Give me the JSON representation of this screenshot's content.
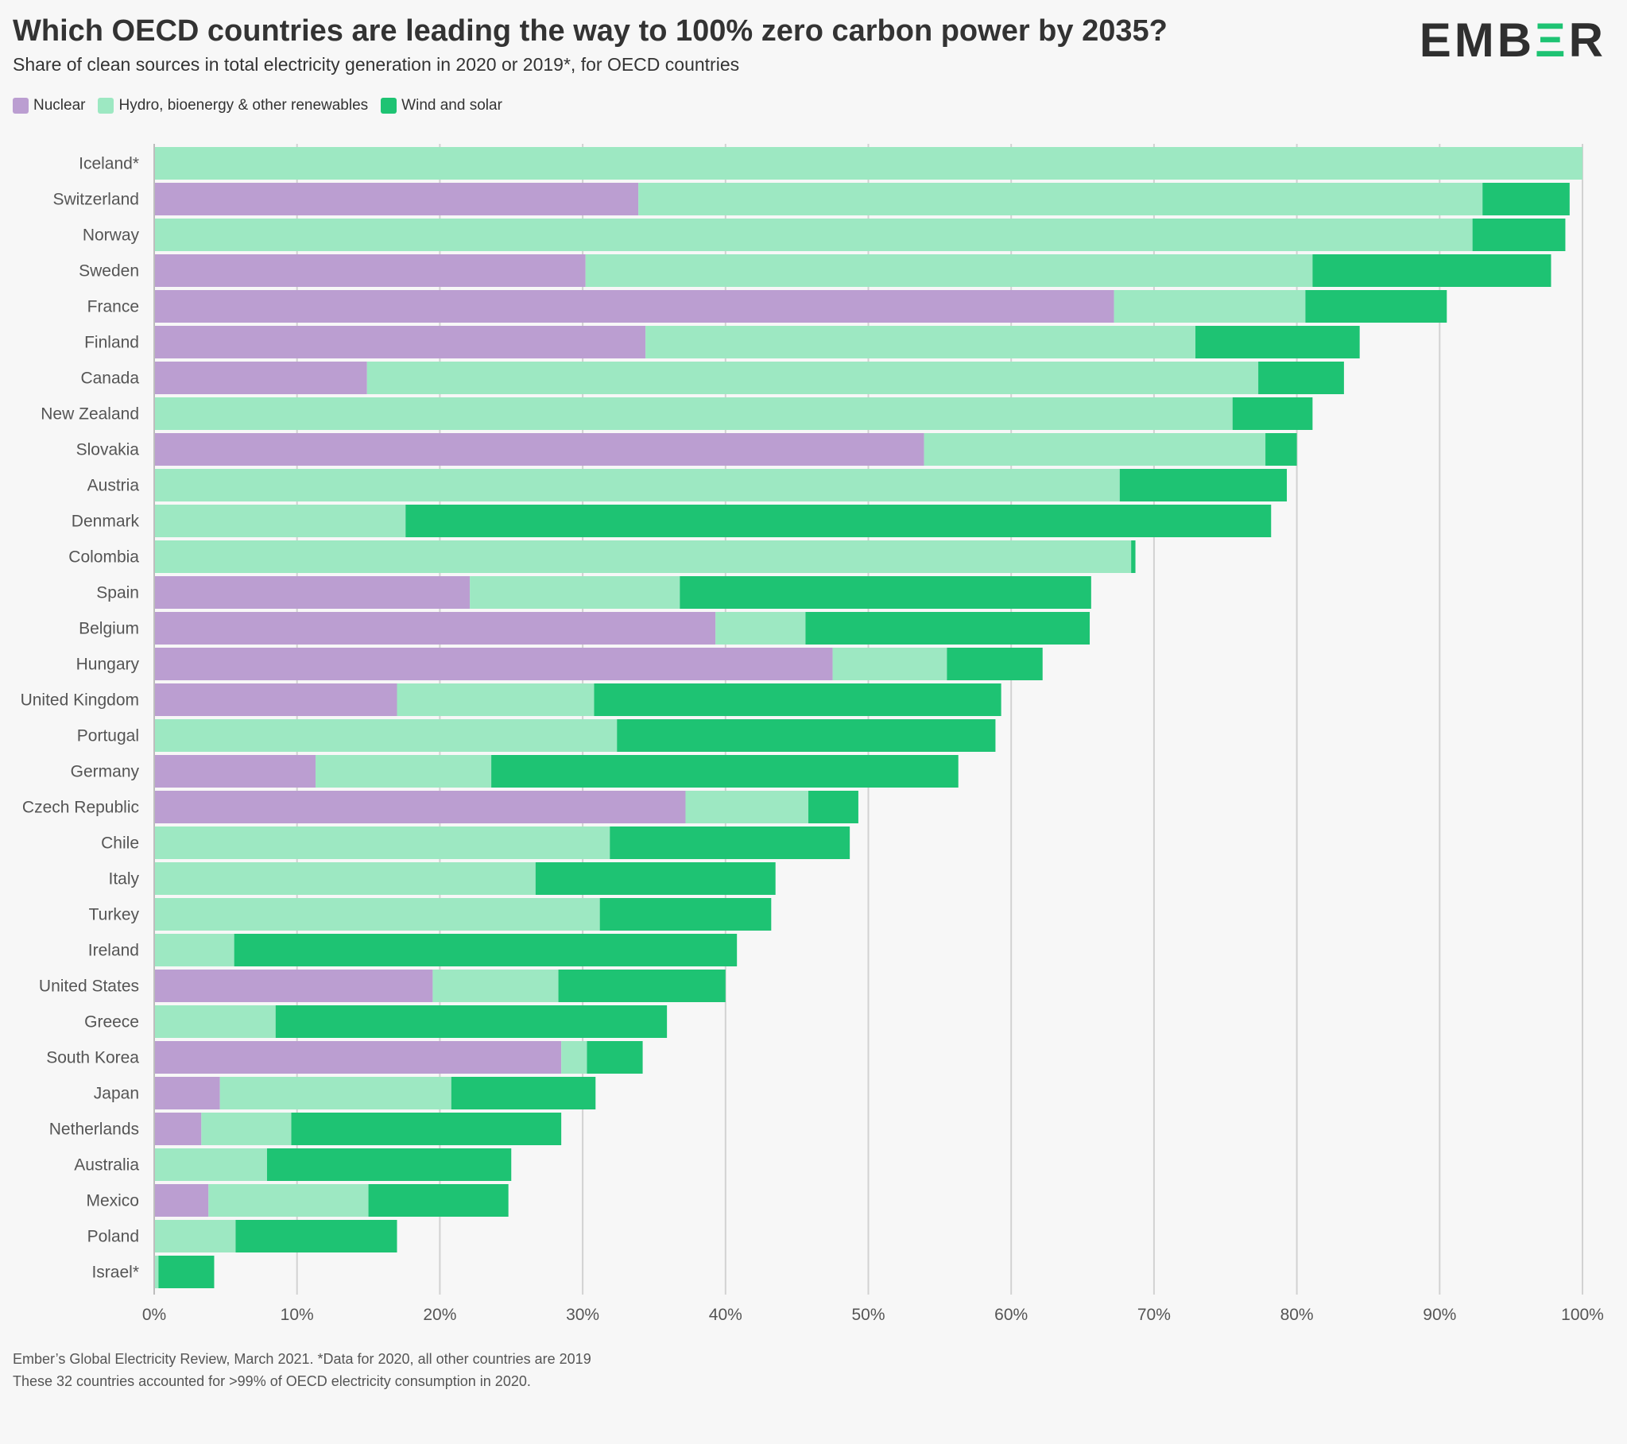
{
  "header": {
    "title": "Which OECD countries are leading the way to 100% zero carbon power by 2035?",
    "subtitle": "Share of clean sources in total electricity generation in 2020 or 2019*, for OECD countries",
    "logo": {
      "before": "EMB",
      "accent": "Ξ",
      "after": "R"
    }
  },
  "colors": {
    "nuclear": "#bb9ed1",
    "hydro": "#9de8c2",
    "wind_solar": "#1ec373",
    "grid": "#d2d2d2",
    "text": "#333333",
    "brand_accent": "#1ec373"
  },
  "footer": {
    "line1": "Ember’s Global Electricity Review, March 2021. *Data for 2020, all other countries are 2019",
    "line2": "These 32 countries accounted for >99% of OECD electricity consumption in 2020."
  },
  "chart_data": {
    "type": "bar",
    "orientation": "horizontal",
    "stacked": true,
    "xlim": [
      0,
      100
    ],
    "x_ticks": [
      "0%",
      "10%",
      "20%",
      "30%",
      "40%",
      "50%",
      "60%",
      "70%",
      "80%",
      "90%",
      "100%"
    ],
    "grid": true,
    "legend_placement": "top-left",
    "categories": [
      "Iceland*",
      "Switzerland",
      "Norway",
      "Sweden",
      "France",
      "Finland",
      "Canada",
      "New Zealand",
      "Slovakia",
      "Austria",
      "Denmark",
      "Colombia",
      "Spain",
      "Belgium",
      "Hungary",
      "United Kingdom",
      "Portugal",
      "Germany",
      "Czech Republic",
      "Chile",
      "Italy",
      "Turkey",
      "Ireland",
      "United States",
      "Greece",
      "South Korea",
      "Japan",
      "Netherlands",
      "Australia",
      "Mexico",
      "Poland",
      "Israel*"
    ],
    "series": [
      {
        "name": "Nuclear",
        "color_key": "nuclear",
        "values": [
          0,
          33.9,
          0,
          30.2,
          67.2,
          34.4,
          14.9,
          0,
          53.9,
          0,
          0,
          0,
          22.1,
          39.3,
          47.5,
          17.0,
          0,
          11.3,
          37.2,
          0,
          0,
          0,
          0,
          19.5,
          0,
          28.5,
          4.6,
          3.3,
          0,
          3.8,
          0,
          0
        ]
      },
      {
        "name": "Hydro, bioenergy & other renewables",
        "color_key": "hydro",
        "values": [
          100,
          59.1,
          92.3,
          50.9,
          13.4,
          38.5,
          62.4,
          75.5,
          23.9,
          67.6,
          17.6,
          68.4,
          14.7,
          6.3,
          8.0,
          13.8,
          32.4,
          12.3,
          8.6,
          31.9,
          26.7,
          31.2,
          5.6,
          8.8,
          8.5,
          1.8,
          16.2,
          6.3,
          7.9,
          11.2,
          5.7,
          0.3
        ]
      },
      {
        "name": "Wind and solar",
        "color_key": "wind_solar",
        "values": [
          0,
          6.1,
          6.5,
          16.7,
          9.9,
          11.5,
          6.0,
          5.6,
          2.2,
          11.7,
          60.6,
          0.3,
          28.8,
          19.9,
          6.7,
          28.5,
          26.5,
          32.7,
          3.5,
          16.8,
          16.8,
          12.0,
          35.2,
          11.7,
          27.4,
          3.9,
          10.1,
          18.9,
          17.1,
          9.8,
          11.3,
          3.9
        ]
      }
    ]
  }
}
